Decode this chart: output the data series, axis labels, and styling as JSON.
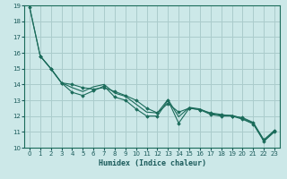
{
  "xlabel": "Humidex (Indice chaleur)",
  "background_color": "#cce8e8",
  "grid_color": "#aacccc",
  "line_color": "#1a6b5a",
  "marker_color": "#1a6b5a",
  "xlim": [
    -0.5,
    23.5
  ],
  "ylim": [
    10,
    19
  ],
  "xticks": [
    0,
    1,
    2,
    3,
    4,
    5,
    6,
    7,
    8,
    9,
    10,
    11,
    12,
    13,
    14,
    15,
    16,
    17,
    18,
    19,
    20,
    21,
    22,
    23
  ],
  "yticks": [
    10,
    11,
    12,
    13,
    14,
    15,
    16,
    17,
    18,
    19
  ],
  "series1_x": [
    0,
    1,
    2,
    3,
    4,
    5,
    6,
    7,
    8,
    9,
    10,
    11,
    12,
    13,
    14,
    15,
    16,
    17,
    18,
    19,
    20,
    21,
    22,
    23
  ],
  "series1_y": [
    18.9,
    15.8,
    15.0,
    14.1,
    13.5,
    13.3,
    13.6,
    13.9,
    13.2,
    13.0,
    12.45,
    12.0,
    12.0,
    13.0,
    11.55,
    12.5,
    12.4,
    12.1,
    12.0,
    12.0,
    11.8,
    11.5,
    10.4,
    11.0
  ],
  "series2_x": [
    0,
    1,
    2,
    3,
    4,
    5,
    6,
    7,
    8,
    9,
    10,
    11,
    12,
    13,
    14,
    15,
    16,
    17,
    18,
    19,
    20,
    21,
    22,
    23
  ],
  "series2_y": [
    18.9,
    15.8,
    15.0,
    14.1,
    13.8,
    13.55,
    13.85,
    14.0,
    13.45,
    13.25,
    12.75,
    12.25,
    12.2,
    13.05,
    11.95,
    12.55,
    12.45,
    12.15,
    12.05,
    12.05,
    11.85,
    11.55,
    10.45,
    11.05
  ],
  "series3_x": [
    1,
    2,
    3,
    4,
    5,
    6,
    7,
    8,
    9,
    10,
    11,
    12,
    13,
    14,
    15,
    16,
    17,
    18,
    19,
    20,
    21,
    22,
    23
  ],
  "series3_y": [
    15.8,
    15.0,
    14.1,
    14.0,
    13.8,
    13.7,
    13.8,
    13.55,
    13.3,
    13.0,
    12.5,
    12.2,
    12.8,
    12.25,
    12.5,
    12.4,
    12.2,
    12.1,
    12.0,
    11.9,
    11.6,
    10.5,
    11.1
  ]
}
